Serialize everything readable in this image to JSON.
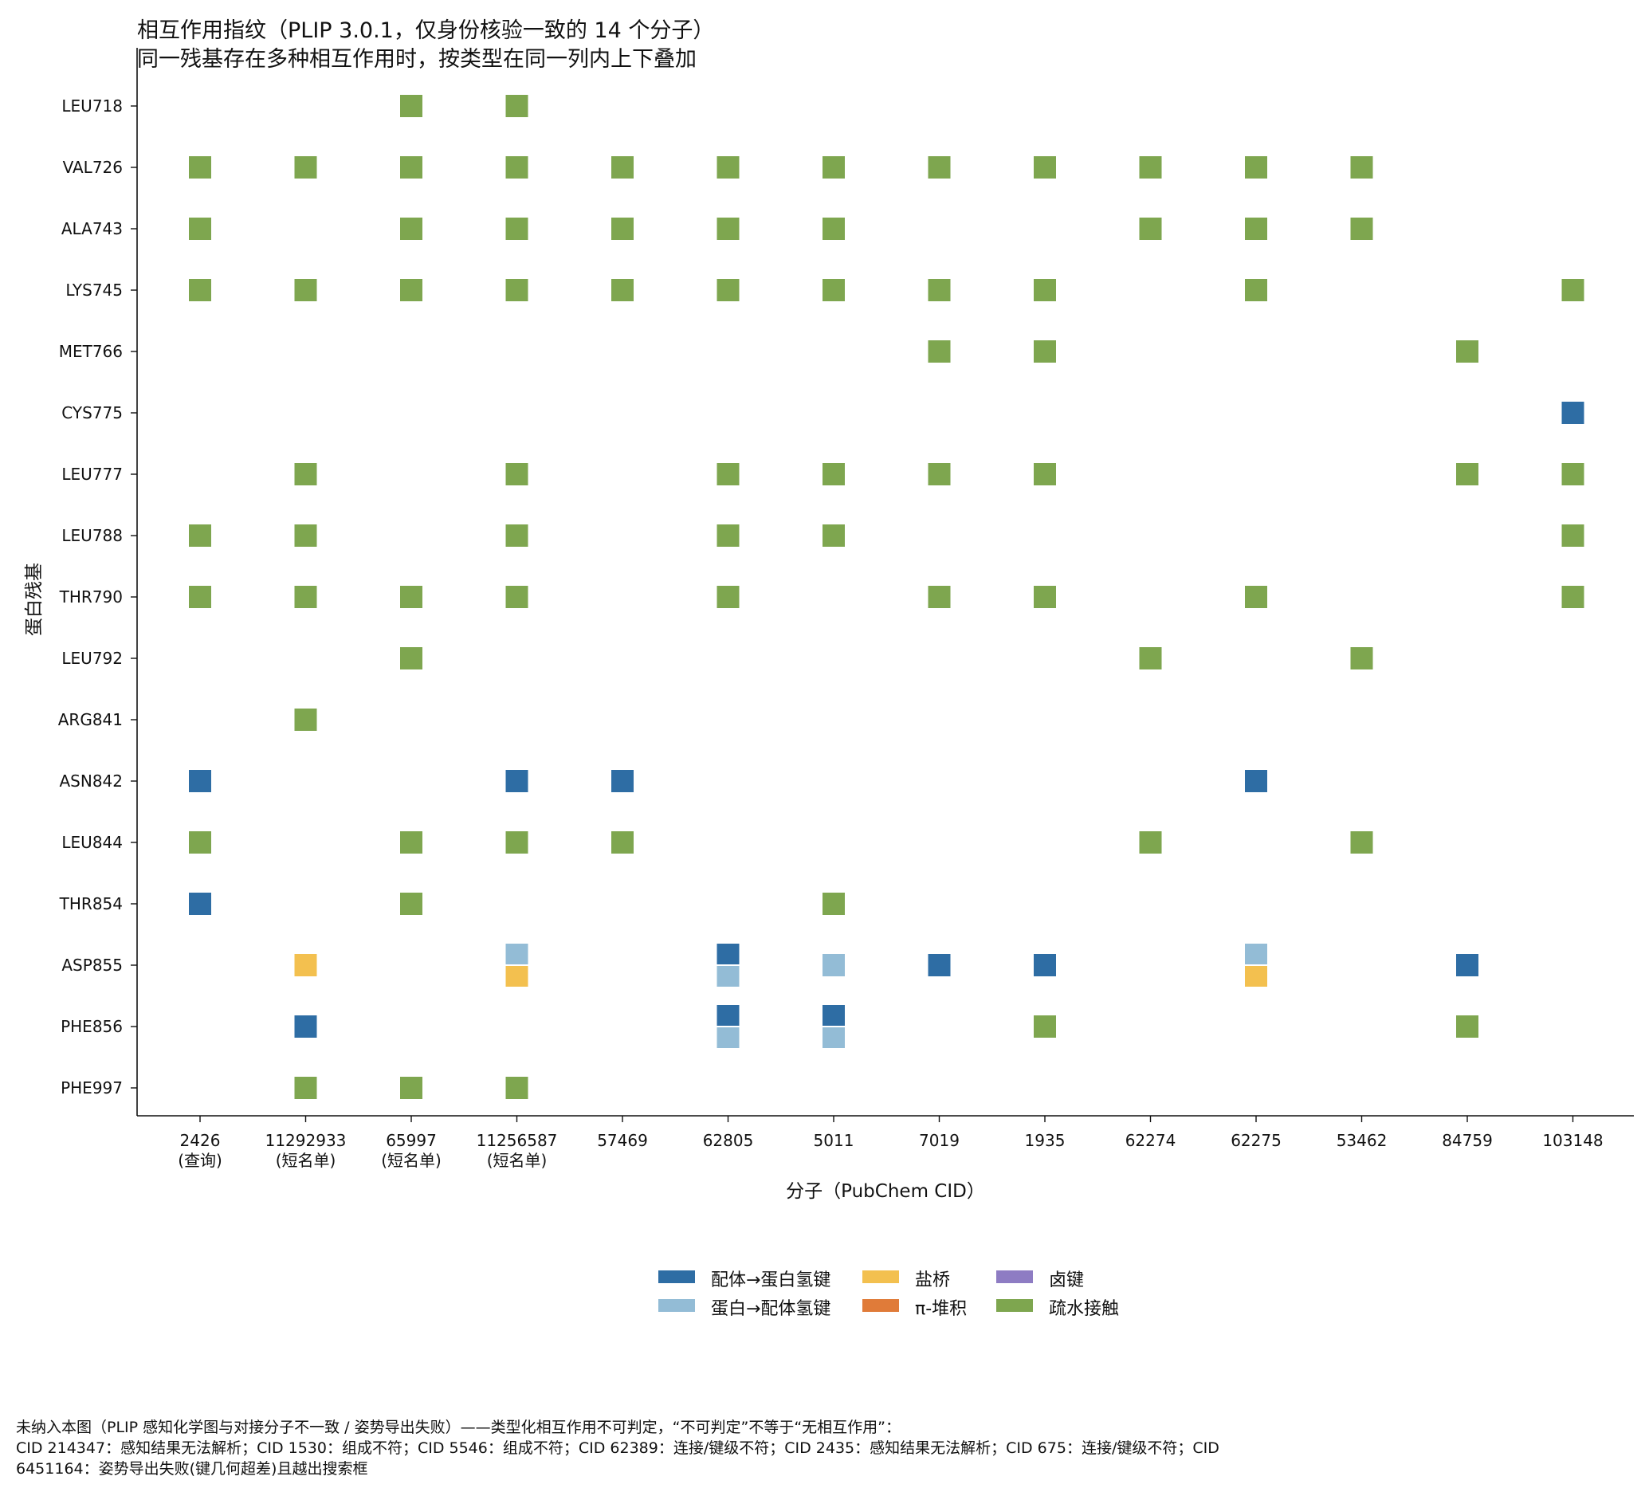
{
  "title": "相互作用指纹（PLIP 3.0.1，仅身份核验一致的 14 个分子）",
  "subtitle": "同一残基存在多种相互作用时，按类型在同一列内上下叠加",
  "footnote": [
    "未纳入本图（PLIP 感知化学图与对接分子不一致 / 姿势导出失败）——类型化相互作用不可判定，“不可判定”不等于“无相互作用”：",
    "CID 214347：感知结果无法解析；CID 1530：组成不符；CID 5546：组成不符；CID 62389：连接/键级不符；CID 2435：感知结果无法解析；CID 675：连接/键级不符；CID",
    "6451164：姿势导出失败(键几何超差)且越出搜索框"
  ],
  "colors": {
    "lig_hbond": "#2e6da4",
    "prot_hbond": "#93bcd6",
    "salt": "#f3c04f",
    "pi": "#e07b39",
    "halogen": "#8e7cc3",
    "hydrophobic": "#7ea64f"
  },
  "legend": [
    {
      "key": "lig_hbond",
      "label": "配体→蛋白氢键"
    },
    {
      "key": "prot_hbond",
      "label": "蛋白→配体氢键"
    },
    {
      "key": "salt",
      "label": "盐桥"
    },
    {
      "key": "pi",
      "label": "π-堆积"
    },
    {
      "key": "halogen",
      "label": "卤键"
    },
    {
      "key": "hydrophobic",
      "label": "疏水接触"
    }
  ],
  "chart_data": {
    "type": "heatmap",
    "xlabel": "分子（PubChem CID）",
    "ylabel": "蛋白残基",
    "molecules": [
      {
        "cid": "2426",
        "note": "(查询)"
      },
      {
        "cid": "11292933",
        "note": "(短名单)"
      },
      {
        "cid": "65997",
        "note": "(短名单)"
      },
      {
        "cid": "11256587",
        "note": "(短名单)"
      },
      {
        "cid": "57469",
        "note": ""
      },
      {
        "cid": "62805",
        "note": ""
      },
      {
        "cid": "5011",
        "note": ""
      },
      {
        "cid": "7019",
        "note": ""
      },
      {
        "cid": "1935",
        "note": ""
      },
      {
        "cid": "62274",
        "note": ""
      },
      {
        "cid": "62275",
        "note": ""
      },
      {
        "cid": "53462",
        "note": ""
      },
      {
        "cid": "84759",
        "note": ""
      },
      {
        "cid": "103148",
        "note": ""
      }
    ],
    "residues": [
      "LEU718",
      "VAL726",
      "ALA743",
      "LYS745",
      "MET766",
      "CYS775",
      "LEU777",
      "LEU788",
      "THR790",
      "LEU792",
      "ARG841",
      "ASN842",
      "LEU844",
      "THR854",
      "ASP855",
      "PHE856",
      "PHE997"
    ],
    "interactions": [
      {
        "residue": "LEU718",
        "molecule": "65997",
        "types": [
          "hydrophobic"
        ]
      },
      {
        "residue": "LEU718",
        "molecule": "11256587",
        "types": [
          "hydrophobic"
        ]
      },
      {
        "residue": "VAL726",
        "molecule": "2426",
        "types": [
          "hydrophobic"
        ]
      },
      {
        "residue": "VAL726",
        "molecule": "11292933",
        "types": [
          "hydrophobic"
        ]
      },
      {
        "residue": "VAL726",
        "molecule": "65997",
        "types": [
          "hydrophobic"
        ]
      },
      {
        "residue": "VAL726",
        "molecule": "11256587",
        "types": [
          "hydrophobic"
        ]
      },
      {
        "residue": "VAL726",
        "molecule": "57469",
        "types": [
          "hydrophobic"
        ]
      },
      {
        "residue": "VAL726",
        "molecule": "62805",
        "types": [
          "hydrophobic"
        ]
      },
      {
        "residue": "VAL726",
        "molecule": "5011",
        "types": [
          "hydrophobic"
        ]
      },
      {
        "residue": "VAL726",
        "molecule": "7019",
        "types": [
          "hydrophobic"
        ]
      },
      {
        "residue": "VAL726",
        "molecule": "1935",
        "types": [
          "hydrophobic"
        ]
      },
      {
        "residue": "VAL726",
        "molecule": "62274",
        "types": [
          "hydrophobic"
        ]
      },
      {
        "residue": "VAL726",
        "molecule": "62275",
        "types": [
          "hydrophobic"
        ]
      },
      {
        "residue": "VAL726",
        "molecule": "53462",
        "types": [
          "hydrophobic"
        ]
      },
      {
        "residue": "ALA743",
        "molecule": "2426",
        "types": [
          "hydrophobic"
        ]
      },
      {
        "residue": "ALA743",
        "molecule": "65997",
        "types": [
          "hydrophobic"
        ]
      },
      {
        "residue": "ALA743",
        "molecule": "11256587",
        "types": [
          "hydrophobic"
        ]
      },
      {
        "residue": "ALA743",
        "molecule": "57469",
        "types": [
          "hydrophobic"
        ]
      },
      {
        "residue": "ALA743",
        "molecule": "62805",
        "types": [
          "hydrophobic"
        ]
      },
      {
        "residue": "ALA743",
        "molecule": "5011",
        "types": [
          "hydrophobic"
        ]
      },
      {
        "residue": "ALA743",
        "molecule": "62274",
        "types": [
          "hydrophobic"
        ]
      },
      {
        "residue": "ALA743",
        "molecule": "62275",
        "types": [
          "hydrophobic"
        ]
      },
      {
        "residue": "ALA743",
        "molecule": "53462",
        "types": [
          "hydrophobic"
        ]
      },
      {
        "residue": "LYS745",
        "molecule": "2426",
        "types": [
          "hydrophobic"
        ]
      },
      {
        "residue": "LYS745",
        "molecule": "11292933",
        "types": [
          "hydrophobic"
        ]
      },
      {
        "residue": "LYS745",
        "molecule": "65997",
        "types": [
          "hydrophobic"
        ]
      },
      {
        "residue": "LYS745",
        "molecule": "11256587",
        "types": [
          "hydrophobic"
        ]
      },
      {
        "residue": "LYS745",
        "molecule": "57469",
        "types": [
          "hydrophobic"
        ]
      },
      {
        "residue": "LYS745",
        "molecule": "62805",
        "types": [
          "hydrophobic"
        ]
      },
      {
        "residue": "LYS745",
        "molecule": "5011",
        "types": [
          "hydrophobic"
        ]
      },
      {
        "residue": "LYS745",
        "molecule": "7019",
        "types": [
          "hydrophobic"
        ]
      },
      {
        "residue": "LYS745",
        "molecule": "1935",
        "types": [
          "hydrophobic"
        ]
      },
      {
        "residue": "LYS745",
        "molecule": "62275",
        "types": [
          "hydrophobic"
        ]
      },
      {
        "residue": "LYS745",
        "molecule": "103148",
        "types": [
          "hydrophobic"
        ]
      },
      {
        "residue": "MET766",
        "molecule": "7019",
        "types": [
          "hydrophobic"
        ]
      },
      {
        "residue": "MET766",
        "molecule": "1935",
        "types": [
          "hydrophobic"
        ]
      },
      {
        "residue": "MET766",
        "molecule": "84759",
        "types": [
          "hydrophobic"
        ]
      },
      {
        "residue": "CYS775",
        "molecule": "103148",
        "types": [
          "lig_hbond"
        ]
      },
      {
        "residue": "LEU777",
        "molecule": "11292933",
        "types": [
          "hydrophobic"
        ]
      },
      {
        "residue": "LEU777",
        "molecule": "11256587",
        "types": [
          "hydrophobic"
        ]
      },
      {
        "residue": "LEU777",
        "molecule": "62805",
        "types": [
          "hydrophobic"
        ]
      },
      {
        "residue": "LEU777",
        "molecule": "5011",
        "types": [
          "hydrophobic"
        ]
      },
      {
        "residue": "LEU777",
        "molecule": "7019",
        "types": [
          "hydrophobic"
        ]
      },
      {
        "residue": "LEU777",
        "molecule": "1935",
        "types": [
          "hydrophobic"
        ]
      },
      {
        "residue": "LEU777",
        "molecule": "84759",
        "types": [
          "hydrophobic"
        ]
      },
      {
        "residue": "LEU777",
        "molecule": "103148",
        "types": [
          "hydrophobic"
        ]
      },
      {
        "residue": "LEU788",
        "molecule": "2426",
        "types": [
          "hydrophobic"
        ]
      },
      {
        "residue": "LEU788",
        "molecule": "11292933",
        "types": [
          "hydrophobic"
        ]
      },
      {
        "residue": "LEU788",
        "molecule": "11256587",
        "types": [
          "hydrophobic"
        ]
      },
      {
        "residue": "LEU788",
        "molecule": "62805",
        "types": [
          "hydrophobic"
        ]
      },
      {
        "residue": "LEU788",
        "molecule": "5011",
        "types": [
          "hydrophobic"
        ]
      },
      {
        "residue": "LEU788",
        "molecule": "103148",
        "types": [
          "hydrophobic"
        ]
      },
      {
        "residue": "THR790",
        "molecule": "2426",
        "types": [
          "hydrophobic"
        ]
      },
      {
        "residue": "THR790",
        "molecule": "11292933",
        "types": [
          "hydrophobic"
        ]
      },
      {
        "residue": "THR790",
        "molecule": "65997",
        "types": [
          "hydrophobic"
        ]
      },
      {
        "residue": "THR790",
        "molecule": "11256587",
        "types": [
          "hydrophobic"
        ]
      },
      {
        "residue": "THR790",
        "molecule": "62805",
        "types": [
          "hydrophobic"
        ]
      },
      {
        "residue": "THR790",
        "molecule": "7019",
        "types": [
          "hydrophobic"
        ]
      },
      {
        "residue": "THR790",
        "molecule": "1935",
        "types": [
          "hydrophobic"
        ]
      },
      {
        "residue": "THR790",
        "molecule": "62275",
        "types": [
          "hydrophobic"
        ]
      },
      {
        "residue": "THR790",
        "molecule": "103148",
        "types": [
          "hydrophobic"
        ]
      },
      {
        "residue": "LEU792",
        "molecule": "65997",
        "types": [
          "hydrophobic"
        ]
      },
      {
        "residue": "LEU792",
        "molecule": "62274",
        "types": [
          "hydrophobic"
        ]
      },
      {
        "residue": "LEU792",
        "molecule": "53462",
        "types": [
          "hydrophobic"
        ]
      },
      {
        "residue": "ARG841",
        "molecule": "11292933",
        "types": [
          "hydrophobic"
        ]
      },
      {
        "residue": "ASN842",
        "molecule": "2426",
        "types": [
          "lig_hbond"
        ]
      },
      {
        "residue": "ASN842",
        "molecule": "11256587",
        "types": [
          "lig_hbond"
        ]
      },
      {
        "residue": "ASN842",
        "molecule": "57469",
        "types": [
          "lig_hbond"
        ]
      },
      {
        "residue": "ASN842",
        "molecule": "62275",
        "types": [
          "lig_hbond"
        ]
      },
      {
        "residue": "LEU844",
        "molecule": "2426",
        "types": [
          "hydrophobic"
        ]
      },
      {
        "residue": "LEU844",
        "molecule": "65997",
        "types": [
          "hydrophobic"
        ]
      },
      {
        "residue": "LEU844",
        "molecule": "11256587",
        "types": [
          "hydrophobic"
        ]
      },
      {
        "residue": "LEU844",
        "molecule": "57469",
        "types": [
          "hydrophobic"
        ]
      },
      {
        "residue": "LEU844",
        "molecule": "62274",
        "types": [
          "hydrophobic"
        ]
      },
      {
        "residue": "LEU844",
        "molecule": "53462",
        "types": [
          "hydrophobic"
        ]
      },
      {
        "residue": "THR854",
        "molecule": "2426",
        "types": [
          "lig_hbond"
        ]
      },
      {
        "residue": "THR854",
        "molecule": "65997",
        "types": [
          "hydrophobic"
        ]
      },
      {
        "residue": "THR854",
        "molecule": "5011",
        "types": [
          "hydrophobic"
        ]
      },
      {
        "residue": "ASP855",
        "molecule": "11292933",
        "types": [
          "salt"
        ]
      },
      {
        "residue": "ASP855",
        "molecule": "11256587",
        "types": [
          "prot_hbond",
          "salt"
        ]
      },
      {
        "residue": "ASP855",
        "molecule": "62805",
        "types": [
          "lig_hbond",
          "prot_hbond"
        ]
      },
      {
        "residue": "ASP855",
        "molecule": "5011",
        "types": [
          "prot_hbond"
        ]
      },
      {
        "residue": "ASP855",
        "molecule": "7019",
        "types": [
          "lig_hbond"
        ]
      },
      {
        "residue": "ASP855",
        "molecule": "1935",
        "types": [
          "lig_hbond"
        ]
      },
      {
        "residue": "ASP855",
        "molecule": "62275",
        "types": [
          "prot_hbond",
          "salt"
        ]
      },
      {
        "residue": "ASP855",
        "molecule": "84759",
        "types": [
          "lig_hbond"
        ]
      },
      {
        "residue": "PHE856",
        "molecule": "11292933",
        "types": [
          "lig_hbond"
        ]
      },
      {
        "residue": "PHE856",
        "molecule": "62805",
        "types": [
          "lig_hbond",
          "prot_hbond"
        ]
      },
      {
        "residue": "PHE856",
        "molecule": "5011",
        "types": [
          "lig_hbond",
          "prot_hbond"
        ]
      },
      {
        "residue": "PHE856",
        "molecule": "1935",
        "types": [
          "hydrophobic"
        ]
      },
      {
        "residue": "PHE856",
        "molecule": "84759",
        "types": [
          "hydrophobic"
        ]
      },
      {
        "residue": "PHE997",
        "molecule": "11292933",
        "types": [
          "hydrophobic"
        ]
      },
      {
        "residue": "PHE997",
        "molecule": "65997",
        "types": [
          "hydrophobic"
        ]
      },
      {
        "residue": "PHE997",
        "molecule": "11256587",
        "types": [
          "hydrophobic"
        ]
      }
    ]
  }
}
